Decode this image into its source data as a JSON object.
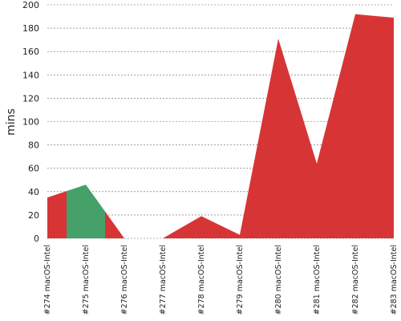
{
  "chart_data": {
    "type": "area",
    "y_label": "mins",
    "categories": [
      "#274 macOS-Intel",
      "#275 macOS-Intel",
      "#276 macOS-Intel",
      "#277 macOS-Intel",
      "#278 macOS-Intel",
      "#279 macOS-Intel",
      "#280 macOS-Intel",
      "#281 macOS-Intel",
      "#282 macOS-Intel",
      "#283 macOS-Intel"
    ],
    "values": [
      35,
      46,
      0,
      0,
      19,
      3,
      171,
      64,
      192,
      189
    ],
    "colors": [
      "#d73535",
      "#45a06a",
      "#d73535",
      "#d73535",
      "#d73535",
      "#d73535",
      "#d73535",
      "#d73535",
      "#d73535",
      "#d73535"
    ],
    "ylim": [
      0,
      200
    ],
    "yticks": [
      0,
      20,
      40,
      60,
      80,
      100,
      120,
      140,
      160,
      180,
      200
    ],
    "grid": true
  }
}
